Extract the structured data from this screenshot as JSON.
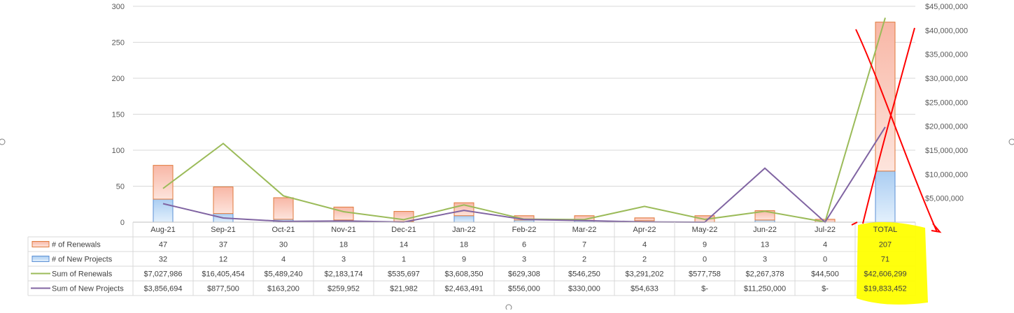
{
  "chart_data": {
    "type": "bar",
    "categories": [
      "Aug-21",
      "Sep-21",
      "Oct-21",
      "Nov-21",
      "Dec-21",
      "Jan-22",
      "Feb-22",
      "Mar-22",
      "Apr-22",
      "May-22",
      "Jun-22",
      "Jul-22",
      "TOTAL"
    ],
    "y_left": {
      "ticks": [
        "0",
        "50",
        "100",
        "150",
        "200",
        "250",
        "300"
      ],
      "ylim": [
        0,
        300
      ]
    },
    "y_right": {
      "ticks": [
        "$5,000,000",
        "$10,000,000",
        "$15,000,000",
        "$20,000,000",
        "$25,000,000",
        "$30,000,000",
        "$35,000,000",
        "$40,000,000",
        "$45,000,000"
      ],
      "ylim": [
        0,
        45000000
      ]
    },
    "series": [
      {
        "name": "# of Renewals",
        "kind": "stacked-bar",
        "axis": "left",
        "color": "#f4a593",
        "edge": "#e07a3c",
        "values": [
          47,
          37,
          30,
          18,
          14,
          18,
          6,
          7,
          4,
          9,
          13,
          4,
          207
        ],
        "labels": [
          "47",
          "37",
          "30",
          "18",
          "14",
          "18",
          "6",
          "7",
          "4",
          "9",
          "13",
          "4",
          "207"
        ]
      },
      {
        "name": "# of New Projects",
        "kind": "stacked-bar",
        "axis": "left",
        "color": "#9cc3ee",
        "edge": "#5b8fd4",
        "values": [
          32,
          12,
          4,
          3,
          1,
          9,
          3,
          2,
          2,
          0,
          3,
          0,
          71
        ],
        "labels": [
          "32",
          "12",
          "4",
          "3",
          "1",
          "9",
          "3",
          "2",
          "2",
          "0",
          "3",
          "0",
          "71"
        ]
      },
      {
        "name": "Sum of Renewals",
        "kind": "line",
        "axis": "right",
        "color": "#9bbb59",
        "values": [
          7027986,
          16405454,
          5489240,
          2183174,
          535697,
          3608350,
          629308,
          546250,
          3291202,
          577758,
          2267378,
          44500,
          42606299
        ],
        "labels": [
          "$7,027,986",
          "$16,405,454",
          "$5,489,240",
          "$2,183,174",
          "$535,697",
          "$3,608,350",
          "$629,308",
          "$546,250",
          "$3,291,202",
          "$577,758",
          "$2,267,378",
          "$44,500",
          "$42,606,299"
        ]
      },
      {
        "name": "Sum of New Projects",
        "kind": "line",
        "axis": "right",
        "color": "#8064a2",
        "values": [
          3856694,
          877500,
          163200,
          259952,
          21982,
          2463491,
          556000,
          330000,
          54633,
          0,
          11250000,
          0,
          19833452
        ],
        "labels": [
          "$3,856,694",
          "$877,500",
          "$163,200",
          "$259,952",
          "$21,982",
          "$2,463,491",
          "$556,000",
          "$330,000",
          "$54,633",
          "$-",
          "$11,250,000",
          "$-",
          "$19,833,452"
        ]
      }
    ],
    "data_table": true,
    "grid": true,
    "annotations": {
      "highlight_color": "#ffff00",
      "cross_color": "#ff0000",
      "highlight_column": "TOTAL"
    }
  }
}
